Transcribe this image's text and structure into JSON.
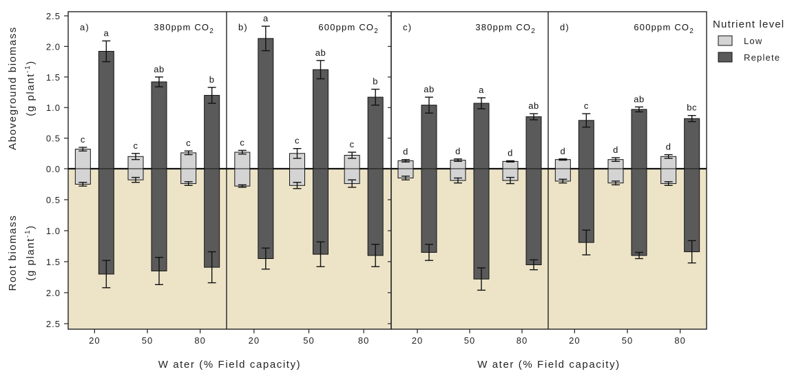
{
  "chart_data": {
    "type": "bar",
    "colors": {
      "low": "#d4d4d4",
      "replete": "#5a5a5a",
      "root_background": "#ede4c8"
    },
    "ylabel_top": [
      "Aboveground biomass",
      "(g plant",
      "-1",
      ")"
    ],
    "ylabel_bottom": [
      "Root biomass",
      "(g plant",
      "-1",
      ")"
    ],
    "y_ticks_top": [
      "2.5",
      "2.0",
      "1.5",
      "1.0",
      "0.5",
      "0.0"
    ],
    "y_ticks_bottom": [
      "0.5",
      "1.0",
      "1.5",
      "2.0",
      "2.5"
    ],
    "ylim_above": [
      0,
      2.6
    ],
    "ylim_root": [
      0,
      2.6
    ],
    "categories": [
      "20",
      "50",
      "80"
    ],
    "xlabel": "W ater (% Field capacity)",
    "legend": {
      "title": "Nutrient level",
      "items": [
        "Low",
        "Replete"
      ]
    },
    "panels": [
      {
        "label": "a)",
        "co2_text": "380ppm CO",
        "co2_sub": "2",
        "low": {
          "above": [
            0.32,
            0.2,
            0.26
          ],
          "above_err": [
            0.03,
            0.05,
            0.03
          ],
          "root": [
            0.25,
            0.18,
            0.24
          ],
          "root_err": [
            0.03,
            0.04,
            0.03
          ]
        },
        "replete": {
          "above": [
            1.92,
            1.42,
            1.2
          ],
          "above_err": [
            0.17,
            0.08,
            0.13
          ],
          "root": [
            1.7,
            1.65,
            1.59
          ],
          "root_err": [
            0.22,
            0.22,
            0.25
          ]
        },
        "letters_low": [
          "c",
          "c",
          "c"
        ],
        "letters_replete": [
          "a",
          "ab",
          "b"
        ]
      },
      {
        "label": "b)",
        "co2_text": "600ppm CO",
        "co2_sub": "2",
        "low": {
          "above": [
            0.27,
            0.25,
            0.22
          ],
          "above_err": [
            0.03,
            0.08,
            0.05
          ],
          "root": [
            0.28,
            0.27,
            0.24
          ],
          "root_err": [
            0.02,
            0.05,
            0.06
          ]
        },
        "replete": {
          "above": [
            2.13,
            1.62,
            1.17
          ],
          "above_err": [
            0.2,
            0.15,
            0.13
          ],
          "root": [
            1.45,
            1.38,
            1.4
          ],
          "root_err": [
            0.17,
            0.2,
            0.18
          ]
        },
        "letters_low": [
          "c",
          "c",
          "c"
        ],
        "letters_replete": [
          "a",
          "ab",
          "b"
        ]
      },
      {
        "label": "c)",
        "co2_text": "380ppm CO",
        "co2_sub": "2",
        "low": {
          "above": [
            0.13,
            0.14,
            0.12
          ],
          "above_err": [
            0.02,
            0.02,
            0.01
          ],
          "root": [
            0.15,
            0.19,
            0.19
          ],
          "root_err": [
            0.03,
            0.04,
            0.05
          ]
        },
        "replete": {
          "above": [
            1.04,
            1.07,
            0.85
          ],
          "above_err": [
            0.13,
            0.09,
            0.05
          ],
          "root": [
            1.35,
            1.78,
            1.55
          ],
          "root_err": [
            0.13,
            0.18,
            0.08
          ]
        },
        "letters_low": [
          "d",
          "d",
          "d"
        ],
        "letters_replete": [
          "ab",
          "a",
          "ab"
        ]
      },
      {
        "label": "d)",
        "co2_text": "600ppm CO",
        "co2_sub": "2",
        "low": {
          "above": [
            0.15,
            0.15,
            0.2
          ],
          "above_err": [
            0.01,
            0.03,
            0.03
          ],
          "root": [
            0.2,
            0.23,
            0.24
          ],
          "root_err": [
            0.03,
            0.03,
            0.03
          ]
        },
        "replete": {
          "above": [
            0.79,
            0.97,
            0.82
          ],
          "above_err": [
            0.11,
            0.04,
            0.05
          ],
          "root": [
            1.19,
            1.4,
            1.34
          ],
          "root_err": [
            0.2,
            0.05,
            0.18
          ]
        },
        "letters_low": [
          "d",
          "d",
          "d"
        ],
        "letters_replete": [
          "c",
          "ab",
          "bc"
        ]
      }
    ]
  }
}
